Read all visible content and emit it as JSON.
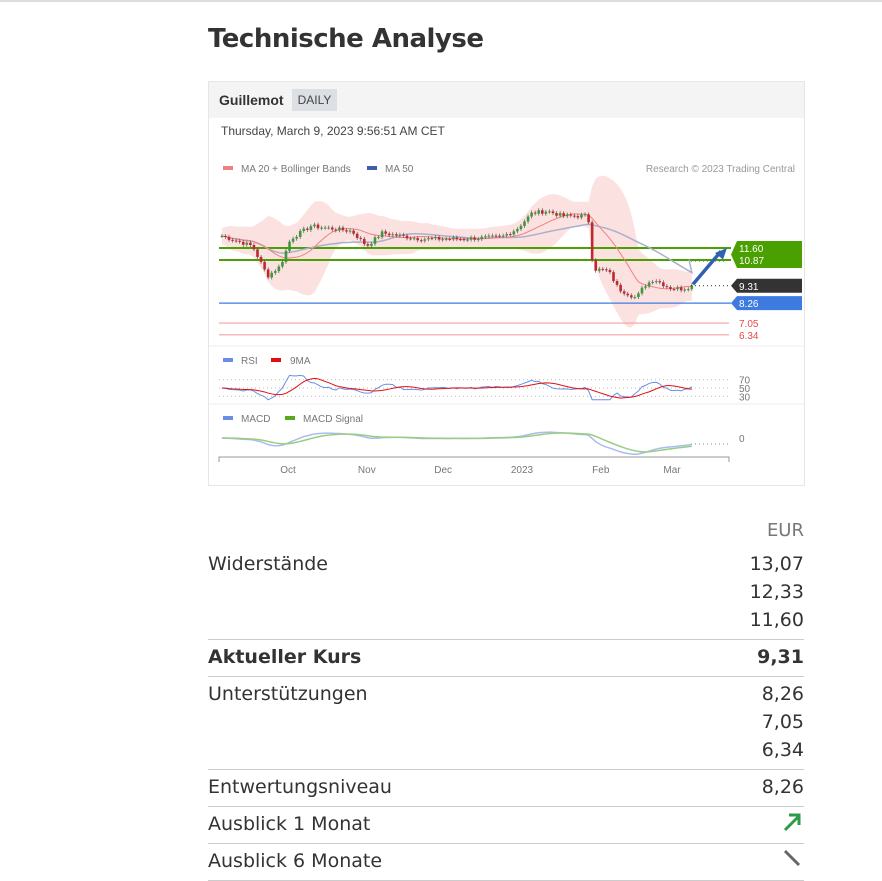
{
  "page_title": "Technische Analyse",
  "chart": {
    "instrument": "Guillemot",
    "interval": "DAILY",
    "timestamp": "Thursday, March 9, 2023 9:56:51 AM CET",
    "legend_main": [
      "MA 20 + Bollinger Bands",
      "MA 50"
    ],
    "copyright": "Research © 2023 Trading Central",
    "legend_rsi": [
      "RSI",
      "9MA"
    ],
    "legend_macd": [
      "MACD",
      "MACD Signal"
    ],
    "colors": {
      "ma20": "#f08080",
      "ma50": "#3f5fa8",
      "resistance": "#4aa000",
      "support": "#3d7be0",
      "price_tag": "#333333",
      "low_support": "#e24b4b",
      "rsi": "#6a8ee6",
      "rsi_ma": "#e01010",
      "macd": "#6a8ee6",
      "signal": "#58a820"
    }
  },
  "chart_data": {
    "type": "candlestick",
    "x_ticks": [
      "Oct",
      "Nov",
      "Dec",
      "2023",
      "Feb",
      "Mar"
    ],
    "price_path": [
      [
        "2022-09-05",
        12.33
      ],
      [
        "2022-09-17",
        11.72
      ],
      [
        "2022-09-23",
        9.9
      ],
      [
        "2022-09-28",
        10.51
      ],
      [
        "2022-10-02",
        12.15
      ],
      [
        "2022-10-10",
        12.93
      ],
      [
        "2022-10-26",
        12.63
      ],
      [
        "2022-11-01",
        11.72
      ],
      [
        "2022-11-07",
        12.51
      ],
      [
        "2022-11-22",
        12.15
      ],
      [
        "2022-12-08",
        12.15
      ],
      [
        "2022-12-24",
        12.27
      ],
      [
        "2022-12-30",
        12.75
      ],
      [
        "2023-01-05",
        13.72
      ],
      [
        "2023-01-11",
        13.84
      ],
      [
        "2023-01-17",
        13.54
      ],
      [
        "2023-01-27",
        13.54
      ],
      [
        "2023-01-29",
        10.33
      ],
      [
        "2023-02-04",
        10.21
      ],
      [
        "2023-02-08",
        9.12
      ],
      [
        "2023-02-15",
        8.57
      ],
      [
        "2023-02-18",
        9.3
      ],
      [
        "2023-02-22",
        9.72
      ],
      [
        "2023-02-28",
        9.18
      ],
      [
        "2023-03-05",
        9.12
      ],
      [
        "2023-03-09",
        9.31
      ]
    ],
    "levels": {
      "resistance": [
        11.6,
        10.87
      ],
      "current": 9.31,
      "supports": [
        8.26,
        7.05,
        6.34
      ]
    },
    "level_labels": [
      "11.60",
      "10.87",
      "9.31",
      "8.26",
      "7.05",
      "6.34"
    ],
    "rsi_ticks": [
      "70",
      "50",
      "30"
    ],
    "macd_ticks": [
      "0"
    ],
    "outlook_arrow": "up"
  },
  "table": {
    "currency": "EUR",
    "rows": [
      {
        "label": "Widerstände",
        "values": [
          "13,07",
          "12,33",
          "11,60"
        ]
      },
      {
        "label": "Aktueller Kurs",
        "values": [
          "9,31"
        ],
        "bold": true
      },
      {
        "label": "Unterstützungen",
        "values": [
          "8,26",
          "7,05",
          "6,34"
        ]
      },
      {
        "label": "Entwertungsniveau",
        "values": [
          "8,26"
        ]
      },
      {
        "label": "Ausblick 1 Monat",
        "icon": "arrow-up-right-icon"
      },
      {
        "label": "Ausblick 6 Monate",
        "icon": "arrow-down-right-icon"
      }
    ]
  }
}
